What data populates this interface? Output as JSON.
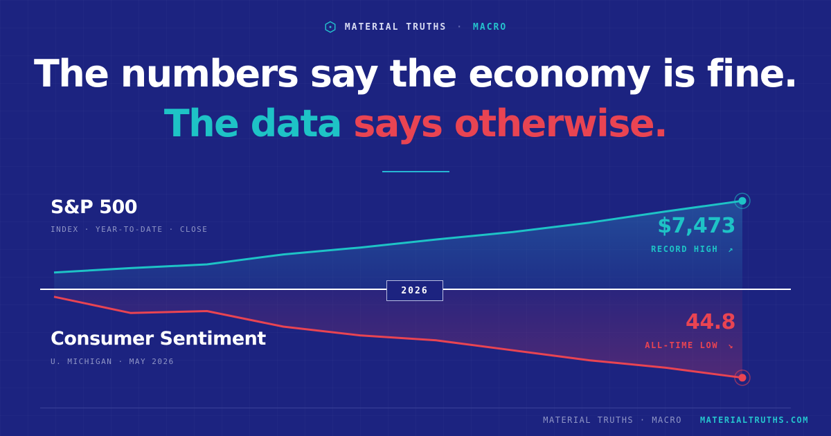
{
  "header": {
    "brand": "MATERIAL TRUTHS",
    "separator": "·",
    "section": "MACRO"
  },
  "headline": {
    "line1": "The numbers say the economy is fine.",
    "line2_part1": "The data",
    "line2_part2": "says otherwise."
  },
  "colors": {
    "background": "#1c2380",
    "teal": "#1ec3c6",
    "red": "#e94452",
    "white": "#ffffff"
  },
  "chart_data": {
    "type": "line",
    "center_label": "2026",
    "series": [
      {
        "name": "S&P 500",
        "subtitle": "INDEX · YEAR-TO-DATE · CLOSE",
        "value_label": "$7,473",
        "tag": "RECORD HIGH",
        "tag_icon": "arrow-up-right-icon",
        "color": "#1ec3c6",
        "direction": "up",
        "values": [
          0.27,
          0.34,
          0.4,
          0.56,
          0.67,
          0.8,
          0.92,
          1.07,
          1.25,
          1.42
        ]
      },
      {
        "name": "Consumer Sentiment",
        "subtitle": "U. MICHIGAN · MAY 2026",
        "value_label": "44.8",
        "tag": "ALL-TIME LOW",
        "tag_icon": "arrow-down-right-icon",
        "color": "#e94452",
        "direction": "down",
        "values": [
          0.12,
          0.38,
          0.35,
          0.6,
          0.74,
          0.82,
          0.98,
          1.14,
          1.26,
          1.42
        ]
      }
    ]
  },
  "footer": {
    "brand": "MATERIAL TRUTHS · MACRO",
    "url": "MATERIALTRUTHS.COM"
  }
}
